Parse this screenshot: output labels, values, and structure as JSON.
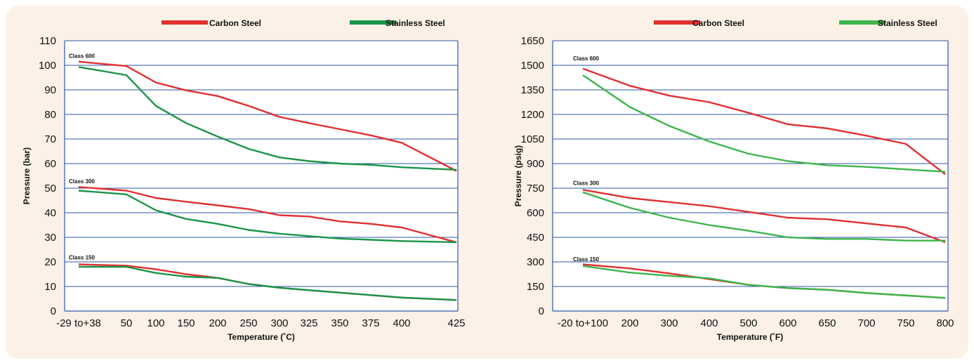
{
  "chart_data": [
    {
      "type": "line",
      "xlabel": "Temperature (˚C)",
      "ylabel": "Pressure (bar)",
      "ylim": [
        0,
        110
      ],
      "yticks": [
        "0",
        "10",
        "20",
        "30",
        "40",
        "50",
        "60",
        "70",
        "80",
        "90",
        "100",
        "110"
      ],
      "categories": [
        "-29 to+38",
        "50",
        "100",
        "150",
        "200",
        "250",
        "300",
        "325",
        "350",
        "375",
        "400",
        "425"
      ],
      "grid": true,
      "legend": [
        {
          "name": "Carbon Steel",
          "color": "#e03030"
        },
        {
          "name": "Stainless Steel",
          "color": "#1a9448"
        }
      ],
      "classes": [
        {
          "label": "Class 600",
          "label_value": 103,
          "carbon": [
            101.5,
            99.7,
            93,
            89.8,
            87.5,
            83.5,
            79,
            76.5,
            74,
            71.5,
            68.5,
            57
          ],
          "stainless": [
            99.3,
            96,
            83.5,
            76.5,
            71,
            66,
            62.5,
            61,
            60,
            59.5,
            58.5,
            57.5
          ]
        },
        {
          "label": "Class 300",
          "label_value": 52,
          "carbon": [
            50.5,
            49,
            46,
            44.5,
            43,
            41.5,
            39,
            38.5,
            36.5,
            35.5,
            34,
            28
          ],
          "stainless": [
            49,
            47.5,
            41,
            37.5,
            35.5,
            33,
            31.5,
            30.5,
            29.5,
            29,
            28.5,
            28
          ]
        },
        {
          "label": "Class 150",
          "label_value": 21,
          "carbon": [
            19,
            18.5,
            17,
            15,
            13.5,
            11,
            9.5,
            8.5,
            7.5,
            6.5,
            5.5,
            4.5
          ],
          "stainless": [
            18,
            18,
            15.5,
            14,
            13.5,
            11,
            9.5,
            8.5,
            7.5,
            6.5,
            5.5,
            4.5
          ]
        }
      ]
    },
    {
      "type": "line",
      "xlabel": "Temperature (˚F)",
      "ylabel": "Pressure (psig)",
      "ylim": [
        0,
        1650
      ],
      "yticks": [
        "0",
        "150",
        "300",
        "450",
        "600",
        "750",
        "900",
        "1050",
        "1200",
        "1350",
        "1500",
        "1650"
      ],
      "categories": [
        "-20 to+100",
        "200",
        "300",
        "400",
        "500",
        "600",
        "650",
        "700",
        "750",
        "800"
      ],
      "grid": true,
      "legend": [
        {
          "name": "Carbon Steel",
          "color": "#e03030"
        },
        {
          "name": "Stainless Steel",
          "color": "#3cb54a"
        }
      ],
      "classes": [
        {
          "label": "Class 600",
          "label_value": 1530,
          "carbon": [
            1480,
            1375,
            1315,
            1275,
            1210,
            1140,
            1115,
            1070,
            1020,
            835
          ],
          "stainless": [
            1440,
            1245,
            1130,
            1035,
            960,
            915,
            890,
            880,
            865,
            850
          ]
        },
        {
          "label": "Class 300",
          "label_value": 770,
          "carbon": [
            740,
            690,
            665,
            640,
            605,
            570,
            560,
            535,
            510,
            420
          ],
          "stainless": [
            725,
            630,
            570,
            525,
            490,
            450,
            440,
            440,
            430,
            430
          ]
        },
        {
          "label": "Class 150",
          "label_value": 305,
          "carbon": [
            285,
            260,
            230,
            195,
            160,
            140,
            130,
            110,
            95,
            80
          ],
          "stainless": [
            275,
            235,
            215,
            200,
            160,
            140,
            130,
            110,
            95,
            80
          ]
        }
      ]
    }
  ]
}
